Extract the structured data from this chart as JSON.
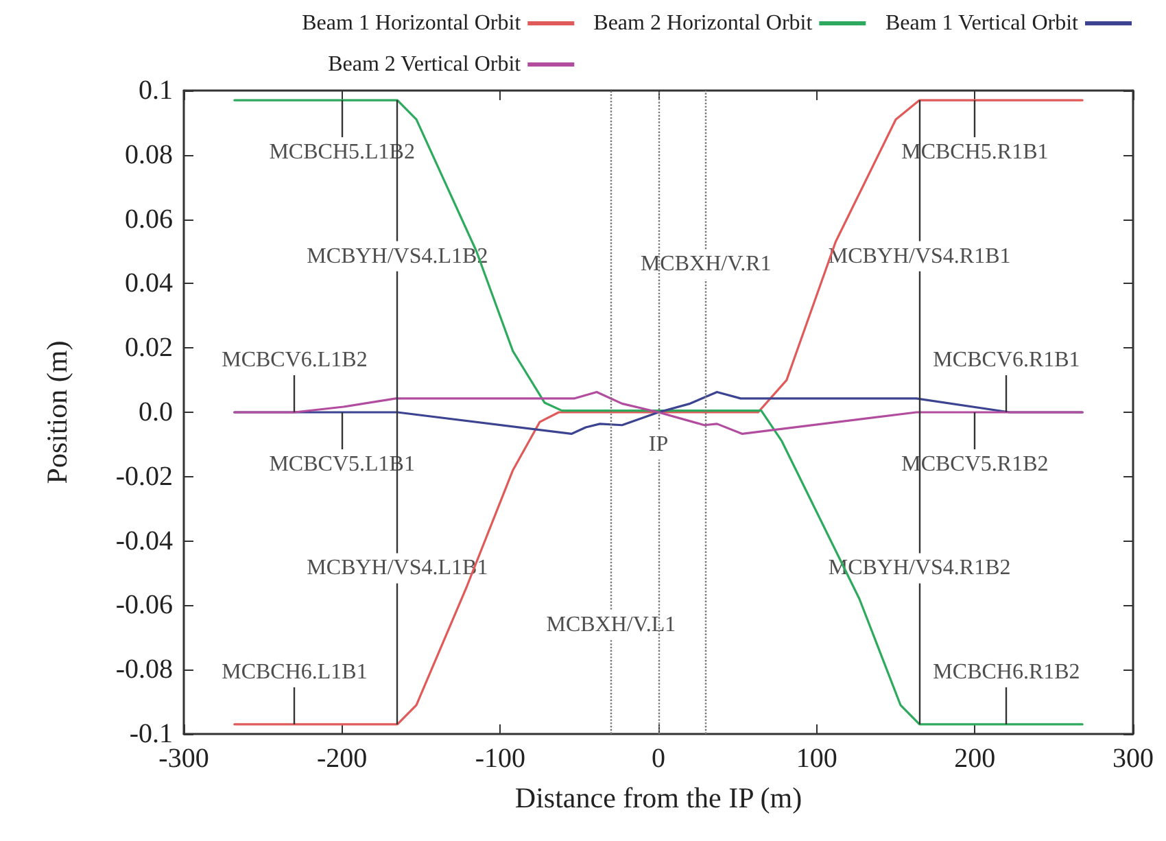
{
  "chart_data": {
    "type": "line",
    "xlabel": "Distance from the IP (m)",
    "ylabel": "Position (m)",
    "xlim": [
      -300,
      300
    ],
    "xticks": [
      -300,
      -200,
      -100,
      0,
      100,
      200,
      300
    ],
    "ylim": [
      -0.1,
      0.1
    ],
    "yticks": [
      -0.1,
      -0.08,
      -0.06,
      -0.04,
      -0.02,
      {
        "value": 0,
        "label": "0.0"
      },
      0.02,
      0.04,
      0.06,
      0.08,
      0.1
    ],
    "legend": "top right",
    "marker": "none",
    "line_style": "solid",
    "series": [
      {
        "name": "Beam 1 Horizontal Orbit",
        "color": "#e05a5a",
        "x": [
          -268,
          -165,
          -153,
          -121,
          -92,
          -75,
          -63,
          0,
          63,
          81,
          112,
          150,
          165,
          268
        ],
        "values": [
          -0.097,
          -0.097,
          -0.091,
          -0.054,
          -0.018,
          -0.003,
          0,
          0,
          0,
          0.01,
          0.053,
          0.091,
          0.097,
          0.097
        ]
      },
      {
        "name": "Beam 2 Horizontal Orbit",
        "color": "#2eaa5e",
        "x": [
          -268,
          -165,
          -153,
          -115,
          -92,
          -72,
          -61,
          0,
          65,
          78,
          98,
          127,
          153,
          165,
          268
        ],
        "values": [
          0.097,
          0.097,
          0.091,
          0.05,
          0.019,
          0.003,
          0.0005,
          0.0005,
          0.0005,
          -0.009,
          -0.029,
          -0.058,
          -0.091,
          -0.097,
          -0.097
        ]
      },
      {
        "name": "Beam 1 Vertical Orbit",
        "color": "#3c4390",
        "x": [
          -268,
          -165,
          -55,
          -46,
          -37,
          -23,
          0,
          20,
          37,
          52,
          163,
          222,
          268
        ],
        "values": [
          0,
          0,
          -0.0067,
          -0.0047,
          -0.0036,
          -0.004,
          0,
          0.0027,
          0.0063,
          0.0043,
          0.0043,
          0,
          0
        ]
      },
      {
        "name": "Beam 2 Vertical Orbit",
        "color": "#b24c9e",
        "x": [
          -268,
          -230,
          -199,
          -166,
          -53,
          -39,
          -23,
          0,
          29,
          37,
          53,
          163,
          268
        ],
        "values": [
          0,
          0,
          0.0017,
          0.0043,
          0.0043,
          0.0063,
          0.0027,
          0,
          -0.004,
          -0.0036,
          -0.0067,
          0,
          0
        ]
      }
    ],
    "ref_lines": [
      {
        "axis": "x",
        "value": -30,
        "label": "MCBXH/V.L1",
        "color": "#777777",
        "line_style": "dotted"
      },
      {
        "axis": "x",
        "value": 0,
        "label": "IP",
        "color": "#777777",
        "line_style": "dotted"
      },
      {
        "axis": "x",
        "value": 30,
        "label": "MCBXH/V.R1",
        "color": "#777777",
        "line_style": "dotted"
      }
    ],
    "annotations": [
      {
        "text": "MCBCH5.L1B2",
        "x": -200,
        "y": 0.097
      },
      {
        "text": "MCBYH/VS4.L1B2",
        "x": -165,
        "y": 0.097
      },
      {
        "text": "MCBYH/VS4.L1B1",
        "x": -165,
        "y": -0.097
      },
      {
        "text": "MCBYH/VS4.R1B1",
        "x": 165,
        "y": 0.097
      },
      {
        "text": "MCBYH/VS4.R1B2",
        "x": 165,
        "y": -0.097
      },
      {
        "text": "MCBCV6.L1B2",
        "x": -230,
        "y": 0
      },
      {
        "text": "MCBCV5.L1B1",
        "x": -200,
        "y": 0
      },
      {
        "text": "MCBCH6.L1B1",
        "x": -230,
        "y": -0.097
      },
      {
        "text": "MCBCH5.R1B1",
        "x": 200,
        "y": 0.097
      },
      {
        "text": "MCBCV6.R1B1",
        "x": 220,
        "y": 0
      },
      {
        "text": "MCBCV5.R1B2",
        "x": 200,
        "y": 0
      },
      {
        "text": "MCBCH6.R1B2",
        "x": 220,
        "y": -0.097
      }
    ]
  }
}
